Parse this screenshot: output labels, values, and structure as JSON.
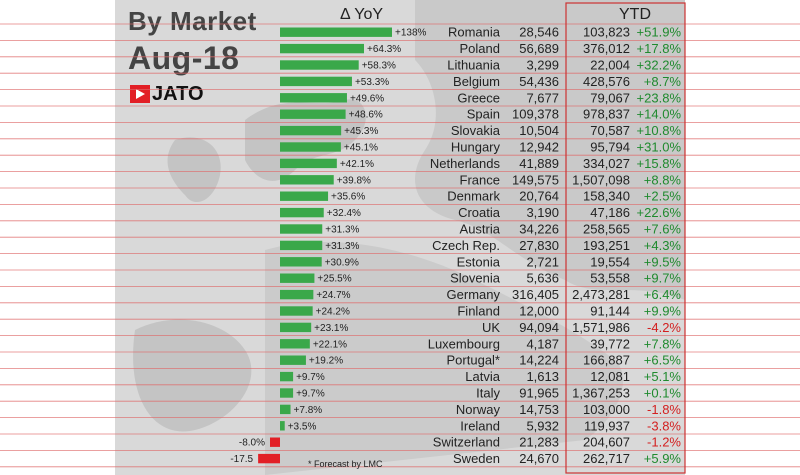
{
  "header": {
    "title_line1": "By Market",
    "title_line2": "Aug-18",
    "logo_text": "JATO",
    "yoy_header": "Δ YoY",
    "ytd_header": "YTD"
  },
  "footnote": "* Forecast by LMC",
  "colors": {
    "positive": "#3aa84a",
    "negative": "#e21f26",
    "row_line": "#e06a6a",
    "ytd_box": "#cc3333",
    "negative_text": "#d32020",
    "positive_text": "#1f8a2e"
  },
  "chart_data": {
    "type": "bar",
    "title": "By Market Aug-18",
    "columns": [
      "Market",
      "Δ YoY",
      "Aug-18",
      "YTD",
      "YTD Δ"
    ],
    "rows": [
      {
        "market": "Romania",
        "yoy": 138.0,
        "yoy_label": "+138%",
        "aug": "28,546",
        "ytd": "103,823",
        "ytd_change": "+51.9%"
      },
      {
        "market": "Poland",
        "yoy": 64.3,
        "yoy_label": "+64.3%",
        "aug": "56,689",
        "ytd": "376,012",
        "ytd_change": "+17.8%"
      },
      {
        "market": "Lithuania",
        "yoy": 58.3,
        "yoy_label": "+58.3%",
        "aug": "3,299",
        "ytd": "22,004",
        "ytd_change": "+32.2%"
      },
      {
        "market": "Belgium",
        "yoy": 53.3,
        "yoy_label": "+53.3%",
        "aug": "54,436",
        "ytd": "428,576",
        "ytd_change": "+8.7%"
      },
      {
        "market": "Greece",
        "yoy": 49.6,
        "yoy_label": "+49.6%",
        "aug": "7,677",
        "ytd": "79,067",
        "ytd_change": "+23.8%"
      },
      {
        "market": "Spain",
        "yoy": 48.6,
        "yoy_label": "+48.6%",
        "aug": "109,378",
        "ytd": "978,837",
        "ytd_change": "+14.0%"
      },
      {
        "market": "Slovakia",
        "yoy": 45.3,
        "yoy_label": "+45.3%",
        "aug": "10,504",
        "ytd": "70,587",
        "ytd_change": "+10.8%"
      },
      {
        "market": "Hungary",
        "yoy": 45.1,
        "yoy_label": "+45.1%",
        "aug": "12,942",
        "ytd": "95,794",
        "ytd_change": "+31.0%"
      },
      {
        "market": "Netherlands",
        "yoy": 42.1,
        "yoy_label": "+42.1%",
        "aug": "41,889",
        "ytd": "334,027",
        "ytd_change": "+15.8%"
      },
      {
        "market": "France",
        "yoy": 39.8,
        "yoy_label": "+39.8%",
        "aug": "149,575",
        "ytd": "1,507,098",
        "ytd_change": "+8.8%"
      },
      {
        "market": "Denmark",
        "yoy": 35.6,
        "yoy_label": "+35.6%",
        "aug": "20,764",
        "ytd": "158,340",
        "ytd_change": "+2.5%"
      },
      {
        "market": "Croatia",
        "yoy": 32.4,
        "yoy_label": "+32.4%",
        "aug": "3,190",
        "ytd": "47,186",
        "ytd_change": "+22.6%"
      },
      {
        "market": "Austria",
        "yoy": 31.3,
        "yoy_label": "+31.3%",
        "aug": "34,226",
        "ytd": "258,565",
        "ytd_change": "+7.6%"
      },
      {
        "market": "Czech Rep.",
        "yoy": 31.3,
        "yoy_label": "+31.3%",
        "aug": "27,830",
        "ytd": "193,251",
        "ytd_change": "+4.3%"
      },
      {
        "market": "Estonia",
        "yoy": 30.9,
        "yoy_label": "+30.9%",
        "aug": "2,721",
        "ytd": "19,554",
        "ytd_change": "+9.5%"
      },
      {
        "market": "Slovenia",
        "yoy": 25.5,
        "yoy_label": "+25.5%",
        "aug": "5,636",
        "ytd": "53,558",
        "ytd_change": "+9.7%"
      },
      {
        "market": "Germany",
        "yoy": 24.7,
        "yoy_label": "+24.7%",
        "aug": "316,405",
        "ytd": "2,473,281",
        "ytd_change": "+6.4%"
      },
      {
        "market": "Finland",
        "yoy": 24.2,
        "yoy_label": "+24.2%",
        "aug": "12,000",
        "ytd": "91,144",
        "ytd_change": "+9.9%"
      },
      {
        "market": "UK",
        "yoy": 23.1,
        "yoy_label": "+23.1%",
        "aug": "94,094",
        "ytd": "1,571,986",
        "ytd_change": "-4.2%"
      },
      {
        "market": "Luxembourg",
        "yoy": 22.1,
        "yoy_label": "+22.1%",
        "aug": "4,187",
        "ytd": "39,772",
        "ytd_change": "+7.8%"
      },
      {
        "market": "Portugal*",
        "yoy": 19.2,
        "yoy_label": "+19.2%",
        "aug": "14,224",
        "ytd": "166,887",
        "ytd_change": "+6.5%"
      },
      {
        "market": "Latvia",
        "yoy": 9.7,
        "yoy_label": "+9.7%",
        "aug": "1,613",
        "ytd": "12,081",
        "ytd_change": "+5.1%"
      },
      {
        "market": "Italy",
        "yoy": 9.7,
        "yoy_label": "+9.7%",
        "aug": "91,965",
        "ytd": "1,367,253",
        "ytd_change": "+0.1%"
      },
      {
        "market": "Norway",
        "yoy": 7.8,
        "yoy_label": "+7.8%",
        "aug": "14,753",
        "ytd": "103,000",
        "ytd_change": "-1.8%"
      },
      {
        "market": "Ireland",
        "yoy": 3.5,
        "yoy_label": "+3.5%",
        "aug": "5,932",
        "ytd": "119,937",
        "ytd_change": "-3.8%"
      },
      {
        "market": "Switzerland",
        "yoy": -8.0,
        "yoy_label": "-8.0%",
        "aug": "21,283",
        "ytd": "204,607",
        "ytd_change": "-1.2%"
      },
      {
        "market": "Sweden",
        "yoy": -17.5,
        "yoy_label": "-17.5",
        "aug": "24,670",
        "ytd": "262,717",
        "ytd_change": "+5.9%"
      }
    ],
    "grid": true,
    "legend": "none"
  }
}
